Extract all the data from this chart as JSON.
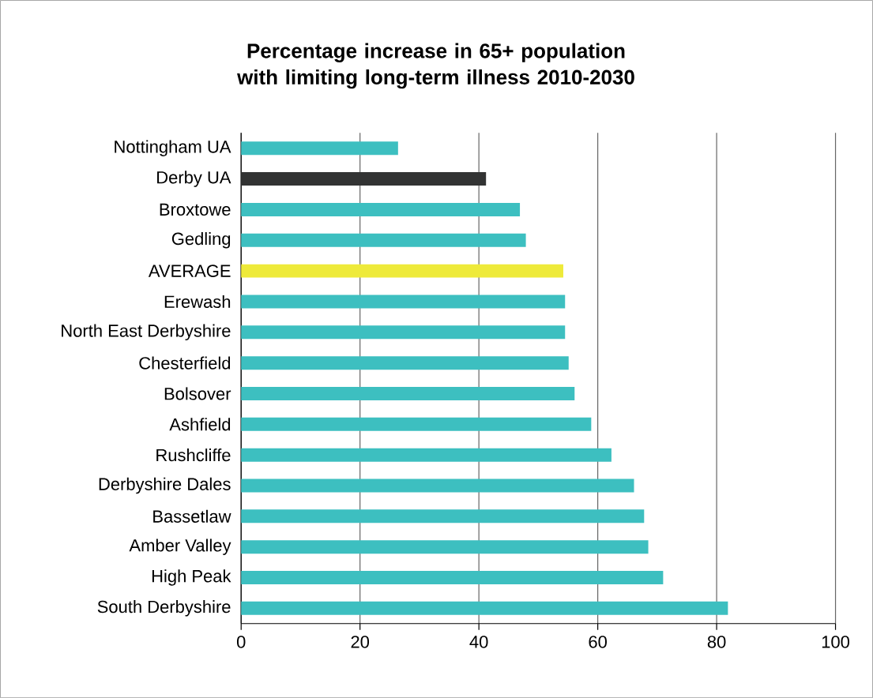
{
  "chart_data": {
    "type": "bar",
    "orientation": "horizontal",
    "title": "Percentage increase in 65+ population with limiting long-term illness 2010-2030",
    "categories": [
      "Nottingham UA",
      "Derby UA",
      "Broxtowe",
      "Gedling",
      "AVERAGE",
      "Erewash",
      "North East Derbyshire",
      "Chesterfield",
      "Bolsover",
      "Ashfield",
      "Rushcliffe",
      "Derbyshire Dales",
      "Bassetlaw",
      "Amber Valley",
      "High Peak",
      "South Derbyshire"
    ],
    "values": [
      26.4,
      41.2,
      46.9,
      47.9,
      54.2,
      54.5,
      54.5,
      55.1,
      56.1,
      58.9,
      62.3,
      66.1,
      67.8,
      68.5,
      71.0,
      81.9
    ],
    "colors": [
      "#3dbfc0",
      "#323333",
      "#3dbfc0",
      "#3dbfc0",
      "#eeea3a",
      "#3dbfc0",
      "#3dbfc0",
      "#3dbfc0",
      "#3dbfc0",
      "#3dbfc0",
      "#3dbfc0",
      "#3dbfc0",
      "#3dbfc0",
      "#3dbfc0",
      "#3dbfc0",
      "#3dbfc0"
    ],
    "xlim": [
      0,
      100
    ],
    "xticks": [
      0,
      20,
      40,
      60,
      80,
      100
    ],
    "grid": "x"
  }
}
